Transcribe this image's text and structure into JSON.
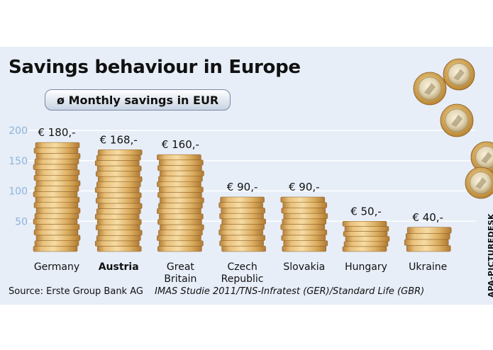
{
  "chart_data": {
    "type": "bar",
    "title": "Savings behaviour in Europe",
    "subtitle": "ø Monthly savings in EUR",
    "categories": [
      {
        "label": "Germany",
        "bold": false
      },
      {
        "label": "Austria",
        "bold": true
      },
      {
        "label": "Great\nBritain",
        "bold": false
      },
      {
        "label": "Czech\nRepublic",
        "bold": false
      },
      {
        "label": "Slovakia",
        "bold": false
      },
      {
        "label": "Hungary",
        "bold": false
      },
      {
        "label": "Ukraine",
        "bold": false
      }
    ],
    "values": [
      180,
      168,
      160,
      90,
      90,
      50,
      40
    ],
    "value_labels": [
      "€ 180,-",
      "€ 168,-",
      "€ 160,-",
      "€ 90,-",
      "€ 90,-",
      "€ 50,-",
      "€ 40,-"
    ],
    "yticks": [
      50,
      100,
      150,
      200
    ],
    "ylim": [
      0,
      200
    ],
    "grid": true,
    "legend": "none",
    "colors": {
      "coin_light": "#f1cf8a",
      "coin_mid": "#d9a74f",
      "coin_dark": "#b7813a",
      "tick_label": "#8fb3d9",
      "panel": "#e7eef8",
      "grid": "#ffffff"
    }
  },
  "source": "Source: Erste Group Bank AG",
  "source_detail": "IMAS Studie 2011/TNS-Infratest (GER)/Standard Life (GBR)",
  "credit": "APA-PICTUREDESK"
}
